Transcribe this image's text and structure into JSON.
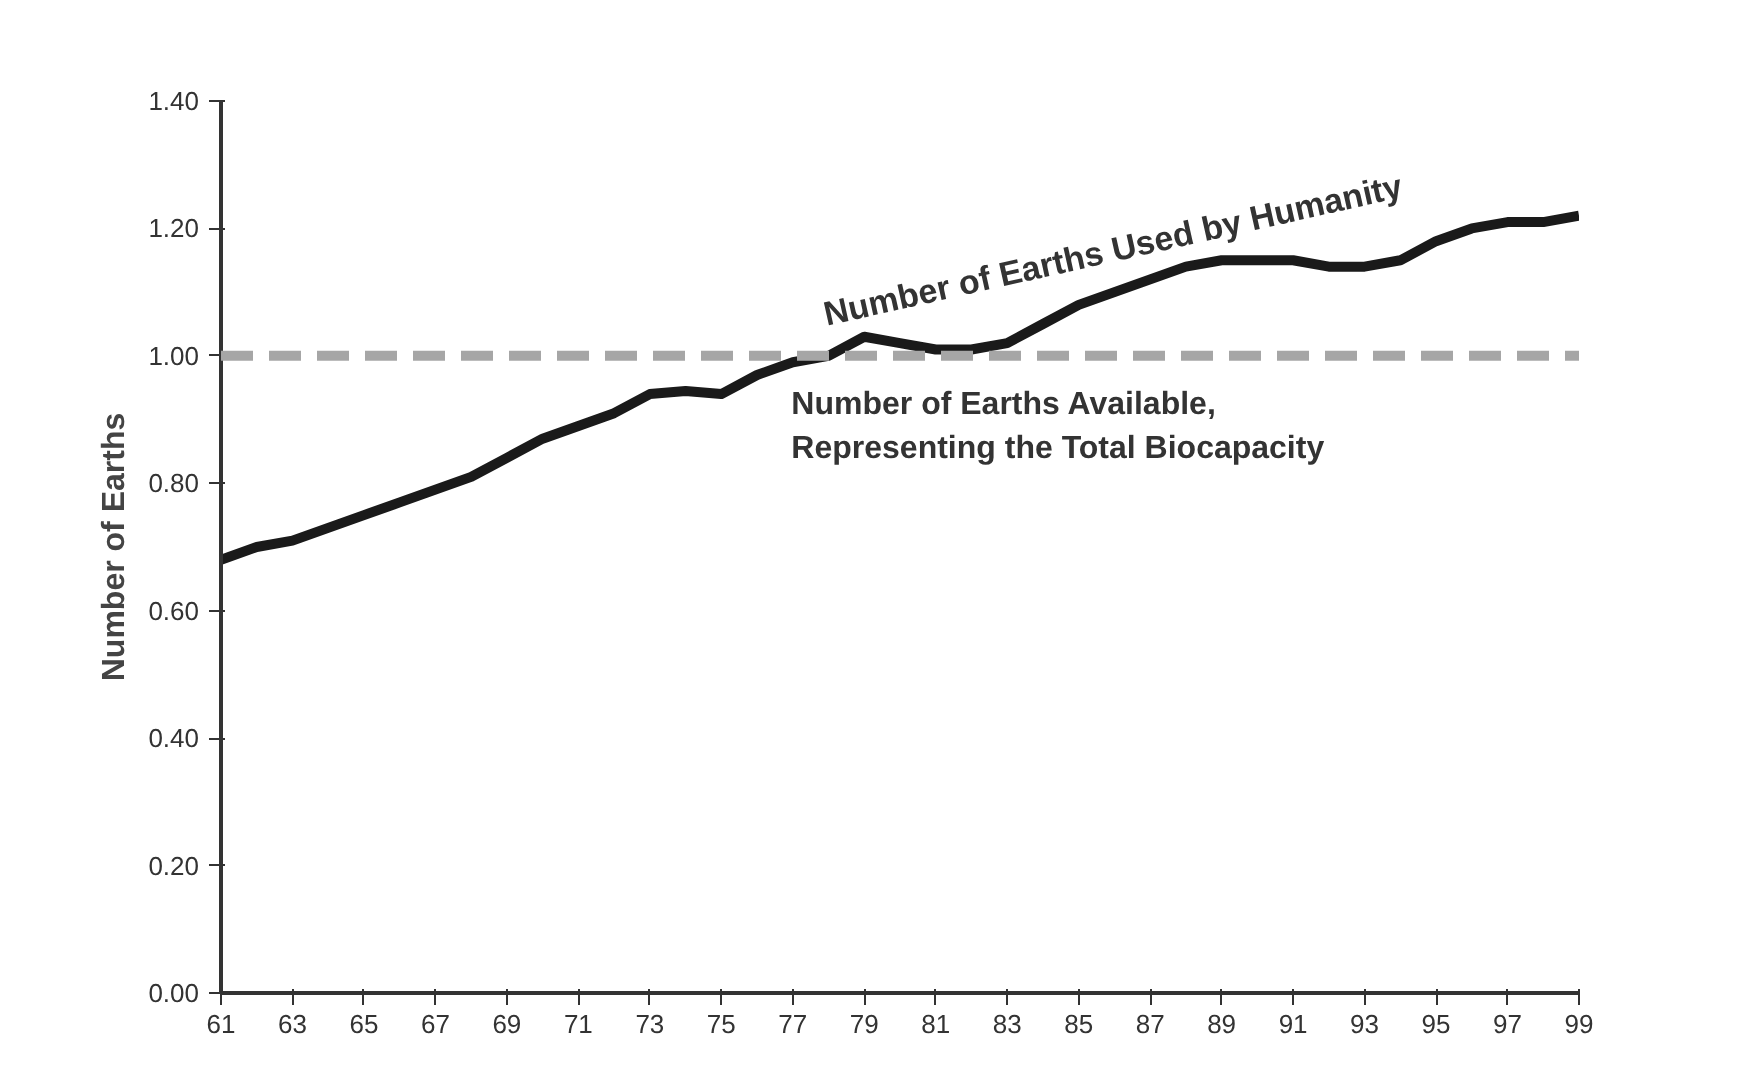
{
  "chart_data": {
    "type": "line",
    "ylabel": "Number of Earths",
    "x": [
      61,
      62,
      63,
      64,
      65,
      66,
      67,
      68,
      69,
      70,
      71,
      72,
      73,
      74,
      75,
      76,
      77,
      78,
      79,
      80,
      81,
      82,
      83,
      84,
      85,
      86,
      87,
      88,
      89,
      90,
      91,
      92,
      93,
      94,
      95,
      96,
      97,
      98,
      99
    ],
    "series": [
      {
        "name": "Number of Earths Used by Humanity",
        "color": "#1a1a1a",
        "values": [
          0.68,
          0.7,
          0.71,
          0.73,
          0.75,
          0.77,
          0.79,
          0.81,
          0.84,
          0.87,
          0.89,
          0.91,
          0.94,
          0.945,
          0.94,
          0.97,
          0.99,
          1.0,
          1.03,
          1.02,
          1.01,
          1.01,
          1.02,
          1.05,
          1.08,
          1.1,
          1.12,
          1.14,
          1.15,
          1.15,
          1.15,
          1.14,
          1.14,
          1.15,
          1.18,
          1.2,
          1.21,
          1.21,
          1.22
        ]
      }
    ],
    "xlim": [
      61,
      99
    ],
    "xticks": [
      61,
      63,
      65,
      67,
      69,
      71,
      73,
      75,
      77,
      79,
      81,
      83,
      85,
      87,
      89,
      91,
      93,
      95,
      97,
      99
    ],
    "ylim": [
      0,
      1.4
    ],
    "yticks": [
      {
        "value": 0,
        "label": "0.00"
      },
      {
        "value": 0.2,
        "label": "0.20"
      },
      {
        "value": 0.4,
        "label": "0.40"
      },
      {
        "value": 0.6,
        "label": "0.60"
      },
      {
        "value": 0.8,
        "label": "0.80"
      },
      {
        "value": 1.0,
        "label": "1.00"
      },
      {
        "value": 1.2,
        "label": "1.20"
      },
      {
        "value": 1.4,
        "label": "1.40"
      }
    ],
    "ref_lines": [
      {
        "axis": "y",
        "value": 1.0,
        "label": "Number of Earths Available, Representing the Total Biocapacity",
        "color": "#a6a6a6",
        "line_style": "dashed"
      }
    ],
    "grid": false,
    "marker": "none",
    "line_style": "solid"
  }
}
